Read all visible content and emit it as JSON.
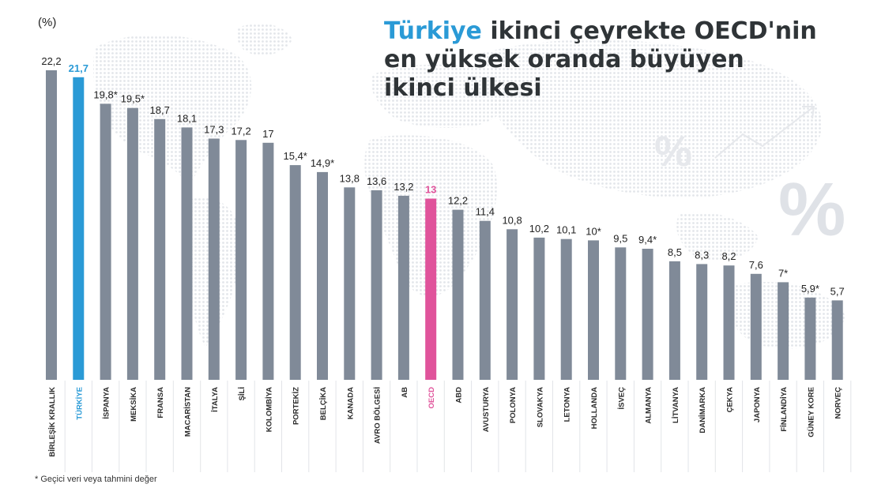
{
  "title": {
    "highlight": "Türkiye",
    "line1_rest": " ikinci çeyrekte OECD'nin",
    "line2": "en yüksek oranda büyüyen",
    "line3": "ikinci ülkesi"
  },
  "unit_label": "(%)",
  "footnote": "* Geçici veri veya tahmini değer",
  "colors": {
    "bar_default": "#808a98",
    "bar_turkiye": "#2a9ad6",
    "bar_oecd": "#e0539b",
    "text": "#222222",
    "title": "#2f3437",
    "map": "#e6e8ec"
  },
  "chart_data": {
    "type": "bar",
    "ylim": [
      0,
      22.2
    ],
    "grid": false,
    "categories": [
      "BİRLEŞİK KRALLIK",
      "TÜRKİYE",
      "İSPANYA",
      "MEKSİKA",
      "FRANSA",
      "MACARİSTAN",
      "İTALYA",
      "ŞİLİ",
      "KOLOMBİYA",
      "PORTEKİZ",
      "BELÇİKA",
      "KANADA",
      "AVRO BÖLGESİ",
      "AB",
      "OECD",
      "ABD",
      "AVUSTURYA",
      "POLONYA",
      "SLOVAKYA",
      "LETONYA",
      "HOLLANDA",
      "İSVEÇ",
      "ALMANYA",
      "LİTVANYA",
      "DANİMARKA",
      "ÇEKYA",
      "JAPONYA",
      "FİNLANDİYA",
      "GÜNEY KORE",
      "NORVEÇ"
    ],
    "values": [
      22.2,
      21.7,
      19.8,
      19.5,
      18.7,
      18.1,
      17.3,
      17.2,
      17,
      15.4,
      14.9,
      13.8,
      13.6,
      13.2,
      13,
      12.2,
      11.4,
      10.8,
      10.2,
      10.1,
      10,
      9.5,
      9.4,
      8.5,
      8.3,
      8.2,
      7.6,
      7,
      5.9,
      5.7
    ],
    "value_labels": [
      "22,2",
      "21,7",
      "19,8*",
      "19,5*",
      "18,7",
      "18,1",
      "17,3",
      "17,2",
      "17",
      "15,4*",
      "14,9*",
      "13,8",
      "13,6",
      "13,2",
      "13",
      "12,2",
      "11,4",
      "10,8",
      "10,2",
      "10,1",
      "10*",
      "9,5",
      "9,4*",
      "8,5",
      "8,3",
      "8,2",
      "7,6",
      "7*",
      "5,9*",
      "5,7"
    ],
    "highlight": {
      "TÜRKİYE": "bar_turkiye",
      "OECD": "bar_oecd"
    }
  }
}
